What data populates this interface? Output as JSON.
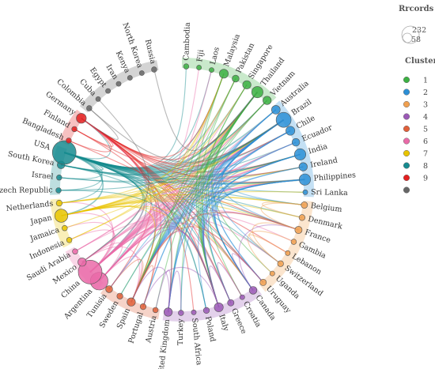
{
  "legend": {
    "size_title": "Rrcords",
    "size_values": [
      "232",
      "58"
    ],
    "cluster_title": "Cluster",
    "clusters": [
      {
        "label": "1",
        "color": "#3cb043"
      },
      {
        "label": "2",
        "color": "#2b8fd6"
      },
      {
        "label": "3",
        "color": "#f0a050"
      },
      {
        "label": "4",
        "color": "#9b59b6"
      },
      {
        "label": "5",
        "color": "#e0603a"
      },
      {
        "label": "6",
        "color": "#ea6aa8"
      },
      {
        "label": "7",
        "color": "#e8c400"
      },
      {
        "label": "8",
        "color": "#178b8f"
      },
      {
        "label": "9",
        "color": "#e32020"
      },
      {
        "label": "",
        "color": "#666666"
      }
    ]
  },
  "countries": [
    {
      "name": "Cambodia",
      "cluster": 1,
      "records": 4
    },
    {
      "name": "Fiji",
      "cluster": 1,
      "records": 3
    },
    {
      "name": "Laos",
      "cluster": 1,
      "records": 3
    },
    {
      "name": "Malaysia",
      "cluster": 1,
      "records": 22
    },
    {
      "name": "Pakistan",
      "cluster": 1,
      "records": 10
    },
    {
      "name": "Singapore",
      "cluster": 1,
      "records": 18
    },
    {
      "name": "Thailand",
      "cluster": 1,
      "records": 40
    },
    {
      "name": "Vietnam",
      "cluster": 1,
      "records": 18
    },
    {
      "name": "Australia",
      "cluster": 2,
      "records": 20
    },
    {
      "name": "Brazil",
      "cluster": 2,
      "records": 80
    },
    {
      "name": "Chile",
      "cluster": 2,
      "records": 22
    },
    {
      "name": "Ecuador",
      "cluster": 2,
      "records": 14
    },
    {
      "name": "India",
      "cluster": 2,
      "records": 40
    },
    {
      "name": "Ireland",
      "cluster": 2,
      "records": 18
    },
    {
      "name": "Philippines",
      "cluster": 2,
      "records": 40
    },
    {
      "name": "Sri Lanka",
      "cluster": 2,
      "records": 3
    },
    {
      "name": "Belgium",
      "cluster": 3,
      "records": 8
    },
    {
      "name": "Denmark",
      "cluster": 3,
      "records": 6
    },
    {
      "name": "France",
      "cluster": 3,
      "records": 12
    },
    {
      "name": "Gambia",
      "cluster": 3,
      "records": 4
    },
    {
      "name": "Lebanon",
      "cluster": 3,
      "records": 3
    },
    {
      "name": "Switzerland",
      "cluster": 3,
      "records": 6
    },
    {
      "name": "Uganda",
      "cluster": 3,
      "records": 3
    },
    {
      "name": "Uruguay",
      "cluster": 3,
      "records": 8
    },
    {
      "name": "Canada",
      "cluster": 4,
      "records": 14
    },
    {
      "name": "Croatia",
      "cluster": 4,
      "records": 3
    },
    {
      "name": "Greece",
      "cluster": 4,
      "records": 8
    },
    {
      "name": "Italy",
      "cluster": 4,
      "records": 22
    },
    {
      "name": "Poland",
      "cluster": 4,
      "records": 6
    },
    {
      "name": "South Africa",
      "cluster": 4,
      "records": 3
    },
    {
      "name": "Turkey",
      "cluster": 4,
      "records": 4
    },
    {
      "name": "United Kingdom",
      "cluster": 4,
      "records": 18
    },
    {
      "name": "Austria",
      "cluster": 5,
      "records": 4
    },
    {
      "name": "Portugal",
      "cluster": 5,
      "records": 6
    },
    {
      "name": "Spain",
      "cluster": 5,
      "records": 18
    },
    {
      "name": "Sweden",
      "cluster": 5,
      "records": 6
    },
    {
      "name": "Tunisia",
      "cluster": 5,
      "records": 10
    },
    {
      "name": "Argentina",
      "cluster": 6,
      "records": 120
    },
    {
      "name": "China",
      "cluster": 6,
      "records": 232
    },
    {
      "name": "Mexico",
      "cluster": 6,
      "records": 18
    },
    {
      "name": "Saudi Arabia",
      "cluster": 6,
      "records": 4
    },
    {
      "name": "Indonesia",
      "cluster": 7,
      "records": 4
    },
    {
      "name": "Jamaica",
      "cluster": 7,
      "records": 4
    },
    {
      "name": "Japan",
      "cluster": 7,
      "records": 58
    },
    {
      "name": "Netherlands",
      "cluster": 7,
      "records": 6
    },
    {
      "name": "Czech Republic",
      "cluster": 8,
      "records": 4
    },
    {
      "name": "Israel",
      "cluster": 8,
      "records": 4
    },
    {
      "name": "South Korea",
      "cluster": 8,
      "records": 14
    },
    {
      "name": "USA",
      "cluster": 8,
      "records": 232
    },
    {
      "name": "Bangladesh",
      "cluster": 9,
      "records": 4
    },
    {
      "name": "Finland",
      "cluster": 9,
      "records": 4
    },
    {
      "name": "Germany",
      "cluster": 9,
      "records": 28
    },
    {
      "name": "Colombia",
      "cluster": 10,
      "records": 4
    },
    {
      "name": "Cuba",
      "cluster": 10,
      "records": 3
    },
    {
      "name": "Egypt",
      "cluster": 10,
      "records": 3
    },
    {
      "name": "Iran",
      "cluster": 10,
      "records": 3
    },
    {
      "name": "Kenya",
      "cluster": 10,
      "records": 3
    },
    {
      "name": "North Korea",
      "cluster": 10,
      "records": 3
    },
    {
      "name": "Russia",
      "cluster": 10,
      "records": 4
    }
  ],
  "links": [
    [
      "USA",
      "Thailand",
      3
    ],
    [
      "USA",
      "Brazil",
      3
    ],
    [
      "USA",
      "Chile",
      2
    ],
    [
      "USA",
      "India",
      2
    ],
    [
      "USA",
      "Philippines",
      3
    ],
    [
      "USA",
      "Australia",
      2
    ],
    [
      "USA",
      "Vietnam",
      1
    ],
    [
      "USA",
      "Singapore",
      1
    ],
    [
      "USA",
      "Malaysia",
      1
    ],
    [
      "USA",
      "Pakistan",
      1
    ],
    [
      "USA",
      "Ecuador",
      1
    ],
    [
      "USA",
      "Ireland",
      1
    ],
    [
      "USA",
      "France",
      1
    ],
    [
      "USA",
      "Belgium",
      1
    ],
    [
      "USA",
      "Canada",
      1
    ],
    [
      "USA",
      "Italy",
      1
    ],
    [
      "USA",
      "Greece",
      1
    ],
    [
      "USA",
      "United Kingdom",
      1
    ],
    [
      "USA",
      "Spain",
      1
    ],
    [
      "USA",
      "Uruguay",
      1
    ],
    [
      "USA",
      "Switzerland",
      1
    ],
    [
      "USA",
      "China",
      2
    ],
    [
      "USA",
      "Argentina",
      1
    ],
    [
      "USA",
      "Japan",
      2
    ],
    [
      "USA",
      "Netherlands",
      1
    ],
    [
      "USA",
      "Mexico",
      1
    ],
    [
      "USA",
      "Germany",
      1
    ],
    [
      "USA",
      "South Korea",
      2
    ],
    [
      "USA",
      "Israel",
      1
    ],
    [
      "USA",
      "Czech Republic",
      1
    ],
    [
      "USA",
      "Cambodia",
      1
    ],
    [
      "USA",
      "Laos",
      1
    ],
    [
      "USA",
      "Sri Lanka",
      1
    ],
    [
      "USA",
      "Denmark",
      1
    ],
    [
      "USA",
      "Poland",
      1
    ],
    [
      "Germany",
      "Brazil",
      1
    ],
    [
      "Germany",
      "Thailand",
      1
    ],
    [
      "Germany",
      "India",
      1
    ],
    [
      "Germany",
      "Philippines",
      1
    ],
    [
      "Germany",
      "Chile",
      1
    ],
    [
      "Germany",
      "Spain",
      1
    ],
    [
      "Germany",
      "Italy",
      1
    ],
    [
      "Germany",
      "France",
      1
    ],
    [
      "Germany",
      "Greece",
      1
    ],
    [
      "Germany",
      "Croatia",
      1
    ],
    [
      "Germany",
      "Uruguay",
      1
    ],
    [
      "Germany",
      "Canada",
      1
    ],
    [
      "Germany",
      "Tunisia",
      1
    ],
    [
      "Germany",
      "Portugal",
      1
    ],
    [
      "Germany",
      "United Kingdom",
      1
    ],
    [
      "Germany",
      "Malaysia",
      1
    ],
    [
      "Germany",
      "Finland",
      1
    ],
    [
      "Germany",
      "Bangladesh",
      1
    ],
    [
      "Finland",
      "South Africa",
      1
    ],
    [
      "Finland",
      "Ireland",
      1
    ],
    [
      "Bangladesh",
      "Lebanon",
      1
    ],
    [
      "China",
      "Thailand",
      2
    ],
    [
      "China",
      "Brazil",
      2
    ],
    [
      "China",
      "Malaysia",
      1
    ],
    [
      "China",
      "Singapore",
      1
    ],
    [
      "China",
      "Vietnam",
      1
    ],
    [
      "China",
      "Philippines",
      2
    ],
    [
      "China",
      "India",
      1
    ],
    [
      "China",
      "Chile",
      1
    ],
    [
      "China",
      "Australia",
      1
    ],
    [
      "China",
      "Ecuador",
      1
    ],
    [
      "China",
      "Japan",
      1
    ],
    [
      "China",
      "Germany",
      1
    ],
    [
      "China",
      "Italy",
      1
    ],
    [
      "China",
      "Canada",
      1
    ],
    [
      "China",
      "Switzerland",
      1
    ],
    [
      "China",
      "Indonesia",
      1
    ],
    [
      "China",
      "Netherlands",
      1
    ],
    [
      "China",
      "Jamaica",
      1
    ],
    [
      "China",
      "Fiji",
      1
    ],
    [
      "China",
      "Laos",
      1
    ],
    [
      "Argentina",
      "Brazil",
      2
    ],
    [
      "Argentina",
      "Chile",
      1
    ],
    [
      "Argentina",
      "Uruguay",
      1
    ],
    [
      "Argentina",
      "Ecuador",
      1
    ],
    [
      "Argentina",
      "Spain",
      1
    ],
    [
      "Argentina",
      "Italy",
      1
    ],
    [
      "Argentina",
      "Mexico",
      1
    ],
    [
      "Argentina",
      "India",
      1
    ],
    [
      "Argentina",
      "Philippines",
      1
    ],
    [
      "Argentina",
      "Thailand",
      1
    ],
    [
      "Argentina",
      "Gambia",
      1
    ],
    [
      "Argentina",
      "France",
      1
    ],
    [
      "Argentina",
      "Greece",
      1
    ],
    [
      "Mexico",
      "Brazil",
      1
    ],
    [
      "Mexico",
      "Philippines",
      1
    ],
    [
      "Mexico",
      "Spain",
      1
    ],
    [
      "Mexico",
      "India",
      1
    ],
    [
      "Mexico",
      "Vietnam",
      1
    ],
    [
      "Saudi Arabia",
      "Italy",
      1
    ],
    [
      "Saudi Arabia",
      "Thailand",
      1
    ],
    [
      "Saudi Arabia",
      "Pakistan",
      1
    ],
    [
      "Japan",
      "Thailand",
      1
    ],
    [
      "Japan",
      "Brazil",
      1
    ],
    [
      "Japan",
      "Philippines",
      1
    ],
    [
      "Japan",
      "Vietnam",
      1
    ],
    [
      "Japan",
      "Malaysia",
      1
    ],
    [
      "Japan",
      "Singapore",
      1
    ],
    [
      "Japan",
      "India",
      1
    ],
    [
      "Japan",
      "Italy",
      1
    ],
    [
      "Japan",
      "Spain",
      1
    ],
    [
      "Japan",
      "France",
      1
    ],
    [
      "Japan",
      "Belgium",
      1
    ],
    [
      "Japan",
      "Canada",
      1
    ],
    [
      "Japan",
      "Sri Lanka",
      1
    ],
    [
      "Japan",
      "Denmark",
      1
    ],
    [
      "Netherlands",
      "Brazil",
      1
    ],
    [
      "Netherlands",
      "Belgium",
      1
    ],
    [
      "Netherlands",
      "Ireland",
      1
    ],
    [
      "Netherlands",
      "Pakistan",
      1
    ],
    [
      "Jamaica",
      "Brazil",
      1
    ],
    [
      "Indonesia",
      "Thailand",
      1
    ],
    [
      "Indonesia",
      "Malaysia",
      1
    ],
    [
      "South Korea",
      "Thailand",
      1
    ],
    [
      "South Korea",
      "Philippines",
      1
    ],
    [
      "South Korea",
      "Vietnam",
      1
    ],
    [
      "South Korea",
      "Brazil",
      1
    ],
    [
      "South Korea",
      "Italy",
      1
    ],
    [
      "South Korea",
      "India",
      1
    ],
    [
      "Israel",
      "India",
      1
    ],
    [
      "Israel",
      "Brazil",
      1
    ],
    [
      "Czech Republic",
      "Brazil",
      1
    ],
    [
      "Czech Republic",
      "Poland",
      1
    ],
    [
      "Brazil",
      "Italy",
      1
    ],
    [
      "Brazil",
      "Spain",
      1
    ],
    [
      "Brazil",
      "Portugal",
      1
    ],
    [
      "Brazil",
      "France",
      1
    ],
    [
      "Brazil",
      "Canada",
      1
    ],
    [
      "Brazil",
      "Uruguay",
      1
    ],
    [
      "Brazil",
      "Tunisia",
      1
    ],
    [
      "Brazil",
      "United Kingdom",
      1
    ],
    [
      "Brazil",
      "Greece",
      1
    ],
    [
      "Brazil",
      "Switzerland",
      1
    ],
    [
      "Brazil",
      "Belgium",
      1
    ],
    [
      "Brazil",
      "Sweden",
      1
    ],
    [
      "Thailand",
      "Italy",
      1
    ],
    [
      "Thailand",
      "Spain",
      1
    ],
    [
      "Thailand",
      "Canada",
      1
    ],
    [
      "Thailand",
      "Croatia",
      1
    ],
    [
      "Thailand",
      "Uganda",
      1
    ],
    [
      "Thailand",
      "United Kingdom",
      1
    ],
    [
      "Thailand",
      "Turkey",
      1
    ],
    [
      "Thailand",
      "Austria",
      1
    ],
    [
      "Thailand",
      "Sweden",
      1
    ],
    [
      "Philippines",
      "Italy",
      1
    ],
    [
      "Philippines",
      "Spain",
      1
    ],
    [
      "Philippines",
      "Canada",
      1
    ],
    [
      "Philippines",
      "Greece",
      1
    ],
    [
      "Philippines",
      "United Kingdom",
      1
    ],
    [
      "Philippines",
      "Turkey",
      1
    ],
    [
      "India",
      "Italy",
      1
    ],
    [
      "India",
      "Canada",
      1
    ],
    [
      "India",
      "Poland",
      1
    ],
    [
      "India",
      "Spain",
      1
    ],
    [
      "India",
      "Uruguay",
      1
    ],
    [
      "Chile",
      "Spain",
      1
    ],
    [
      "Chile",
      "Italy",
      1
    ],
    [
      "Chile",
      "Canada",
      1
    ],
    [
      "Chile",
      "Portugal",
      1
    ],
    [
      "Australia",
      "Canada",
      1
    ],
    [
      "Australia",
      "Italy",
      1
    ],
    [
      "Australia",
      "United Kingdom",
      1
    ],
    [
      "Australia",
      "Spain",
      1
    ],
    [
      "Ecuador",
      "Spain",
      1
    ],
    [
      "Ecuador",
      "Italy",
      1
    ],
    [
      "Ireland",
      "United Kingdom",
      1
    ],
    [
      "Ireland",
      "Spain",
      1
    ],
    [
      "Vietnam",
      "Italy",
      1
    ],
    [
      "Vietnam",
      "Spain",
      1
    ],
    [
      "Malaysia",
      "Italy",
      1
    ],
    [
      "Malaysia",
      "Spain",
      1
    ],
    [
      "Singapore",
      "Italy",
      1
    ],
    [
      "Singapore",
      "Greece",
      1
    ],
    [
      "Pakistan",
      "Italy",
      1
    ],
    [
      "Pakistan",
      "Spain",
      1
    ],
    [
      "Italy",
      "Spain",
      1
    ],
    [
      "Italy",
      "Greece",
      1
    ],
    [
      "Italy",
      "France",
      1
    ],
    [
      "Italy",
      "Portugal",
      1
    ],
    [
      "Italy",
      "Tunisia",
      1
    ],
    [
      "Spain",
      "France",
      1
    ],
    [
      "Spain",
      "Portugal",
      1
    ],
    [
      "Spain",
      "Uruguay",
      1
    ],
    [
      "Spain",
      "Tunisia",
      1
    ],
    [
      "Canada",
      "Uruguay",
      1
    ],
    [
      "Canada",
      "France",
      1
    ],
    [
      "Greece",
      "Croatia",
      1
    ],
    [
      "United Kingdom",
      "Spain",
      1
    ],
    [
      "United Kingdom",
      "Turkey",
      1
    ],
    [
      "United Kingdom",
      "Austria",
      1
    ],
    [
      "France",
      "Belgium",
      1
    ],
    [
      "France",
      "Switzerland",
      1
    ],
    [
      "Belgium",
      "Denmark",
      1
    ],
    [
      "Switzerland",
      "Lebanon",
      1
    ],
    [
      "Gambia",
      "Uganda",
      1
    ],
    [
      "Colombia",
      "Germany",
      1
    ],
    [
      "Colombia",
      "Brazil",
      1
    ],
    [
      "Russia",
      "Thailand",
      1
    ],
    [
      "Cuba",
      "Mexico",
      1
    ]
  ]
}
